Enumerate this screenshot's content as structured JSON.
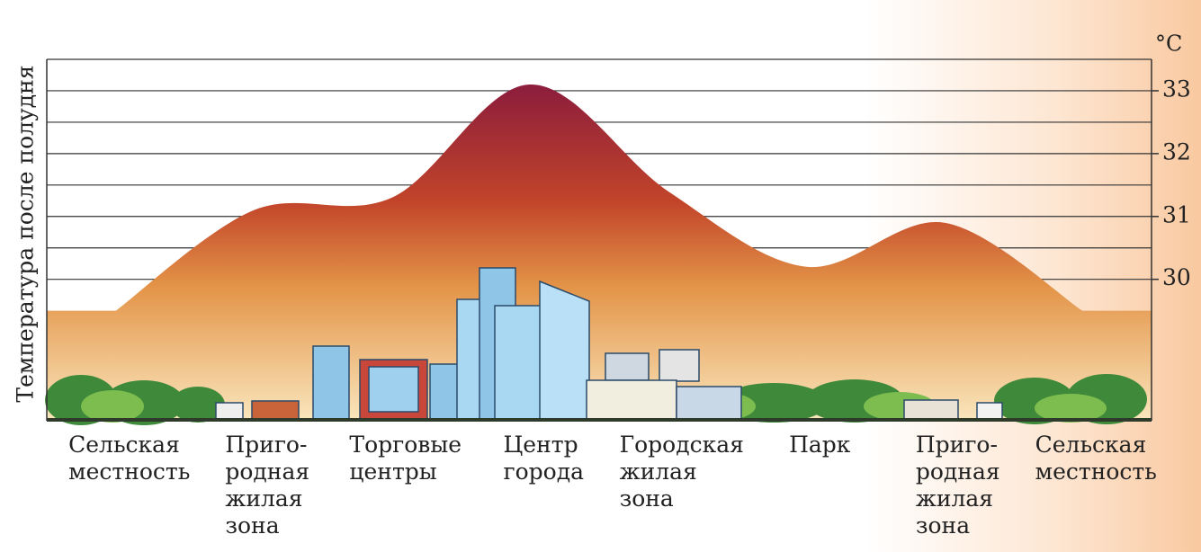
{
  "chart_data": {
    "type": "area",
    "ylabel": "Температура после полудня",
    "yunit": "°C",
    "categories": [
      "Сельская\nместность",
      "Приго-\nродная\nжилая\nзона",
      "Торговые\nцентры",
      "Центр\nгорода",
      "Городская\nжилая\nзона",
      "Парк",
      "Приго-\nродная\nжилая\nзона",
      "Сельская\nместность"
    ],
    "values": [
      29.5,
      31.1,
      31.3,
      33.1,
      31.4,
      30.2,
      30.9,
      29.5
    ],
    "ylim": [
      27.75,
      33.5
    ],
    "yticks": [
      30,
      31,
      32,
      33
    ],
    "yminorticks": [
      30.5,
      31.5,
      32.5,
      33.5
    ],
    "grid": true,
    "axis_side": "right"
  }
}
